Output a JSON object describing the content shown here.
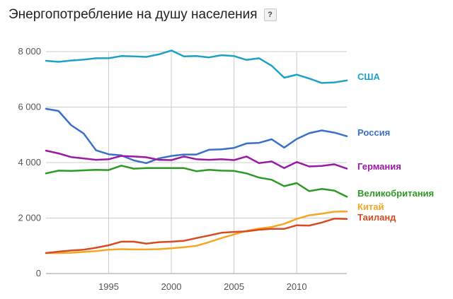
{
  "title": "Энергопотребление на душу населения",
  "help_label": "?",
  "chart_data": {
    "type": "line",
    "title": "Энергопотребление на душу населения",
    "xlabel": "",
    "ylabel": "",
    "xlim": [
      1990,
      2014
    ],
    "ylim": [
      0,
      8000
    ],
    "x_ticks": [
      1995,
      2000,
      2005,
      2010
    ],
    "y_ticks": [
      0,
      2000,
      4000,
      6000,
      8000
    ],
    "x_tick_labels": [
      "1995",
      "2000",
      "2005",
      "2010"
    ],
    "y_tick_labels": [
      "0",
      "2 000",
      "4 000",
      "6 000",
      "8 000"
    ],
    "grid": true,
    "legend": "inline-right",
    "x": [
      1990,
      1991,
      1992,
      1993,
      1994,
      1995,
      1996,
      1997,
      1998,
      1999,
      2000,
      2001,
      2002,
      2003,
      2004,
      2005,
      2006,
      2007,
      2008,
      2009,
      2010,
      2011,
      2012,
      2013,
      2014
    ],
    "series": [
      {
        "name": "США",
        "color": "#1da1c7",
        "values": [
          7670,
          7630,
          7680,
          7710,
          7760,
          7760,
          7840,
          7830,
          7810,
          7900,
          8040,
          7830,
          7840,
          7790,
          7870,
          7840,
          7700,
          7760,
          7490,
          7060,
          7170,
          7030,
          6870,
          6890,
          6960
        ]
      },
      {
        "name": "Россия",
        "color": "#3b6fc9",
        "values": [
          5940,
          5860,
          5350,
          5050,
          4440,
          4300,
          4260,
          4080,
          3980,
          4150,
          4240,
          4290,
          4290,
          4460,
          4480,
          4530,
          4690,
          4710,
          4840,
          4540,
          4850,
          5060,
          5160,
          5080,
          4950
        ]
      },
      {
        "name": "Германия",
        "color": "#9b1aa5",
        "values": [
          4430,
          4330,
          4200,
          4150,
          4100,
          4120,
          4240,
          4220,
          4190,
          4100,
          4090,
          4220,
          4120,
          4100,
          4120,
          4090,
          4220,
          3980,
          4040,
          3800,
          4020,
          3860,
          3880,
          3940,
          3780
        ]
      },
      {
        "name": "Великобритания",
        "color": "#2e9a26",
        "values": [
          3610,
          3710,
          3700,
          3720,
          3740,
          3730,
          3890,
          3780,
          3800,
          3800,
          3800,
          3800,
          3690,
          3740,
          3710,
          3700,
          3610,
          3460,
          3380,
          3150,
          3260,
          2970,
          3050,
          2990,
          2770
        ]
      },
      {
        "name": "Китай",
        "color": "#f5a623",
        "values": [
          740,
          740,
          750,
          780,
          810,
          860,
          880,
          870,
          870,
          880,
          910,
          950,
          1000,
          1130,
          1280,
          1410,
          1540,
          1620,
          1680,
          1790,
          1970,
          2100,
          2160,
          2230,
          2240
        ]
      },
      {
        "name": "Таиланд",
        "color": "#d84b21",
        "values": [
          740,
          790,
          830,
          860,
          930,
          1020,
          1150,
          1150,
          1080,
          1130,
          1150,
          1180,
          1280,
          1370,
          1470,
          1500,
          1520,
          1580,
          1610,
          1610,
          1740,
          1730,
          1840,
          1980,
          1970
        ]
      }
    ]
  }
}
